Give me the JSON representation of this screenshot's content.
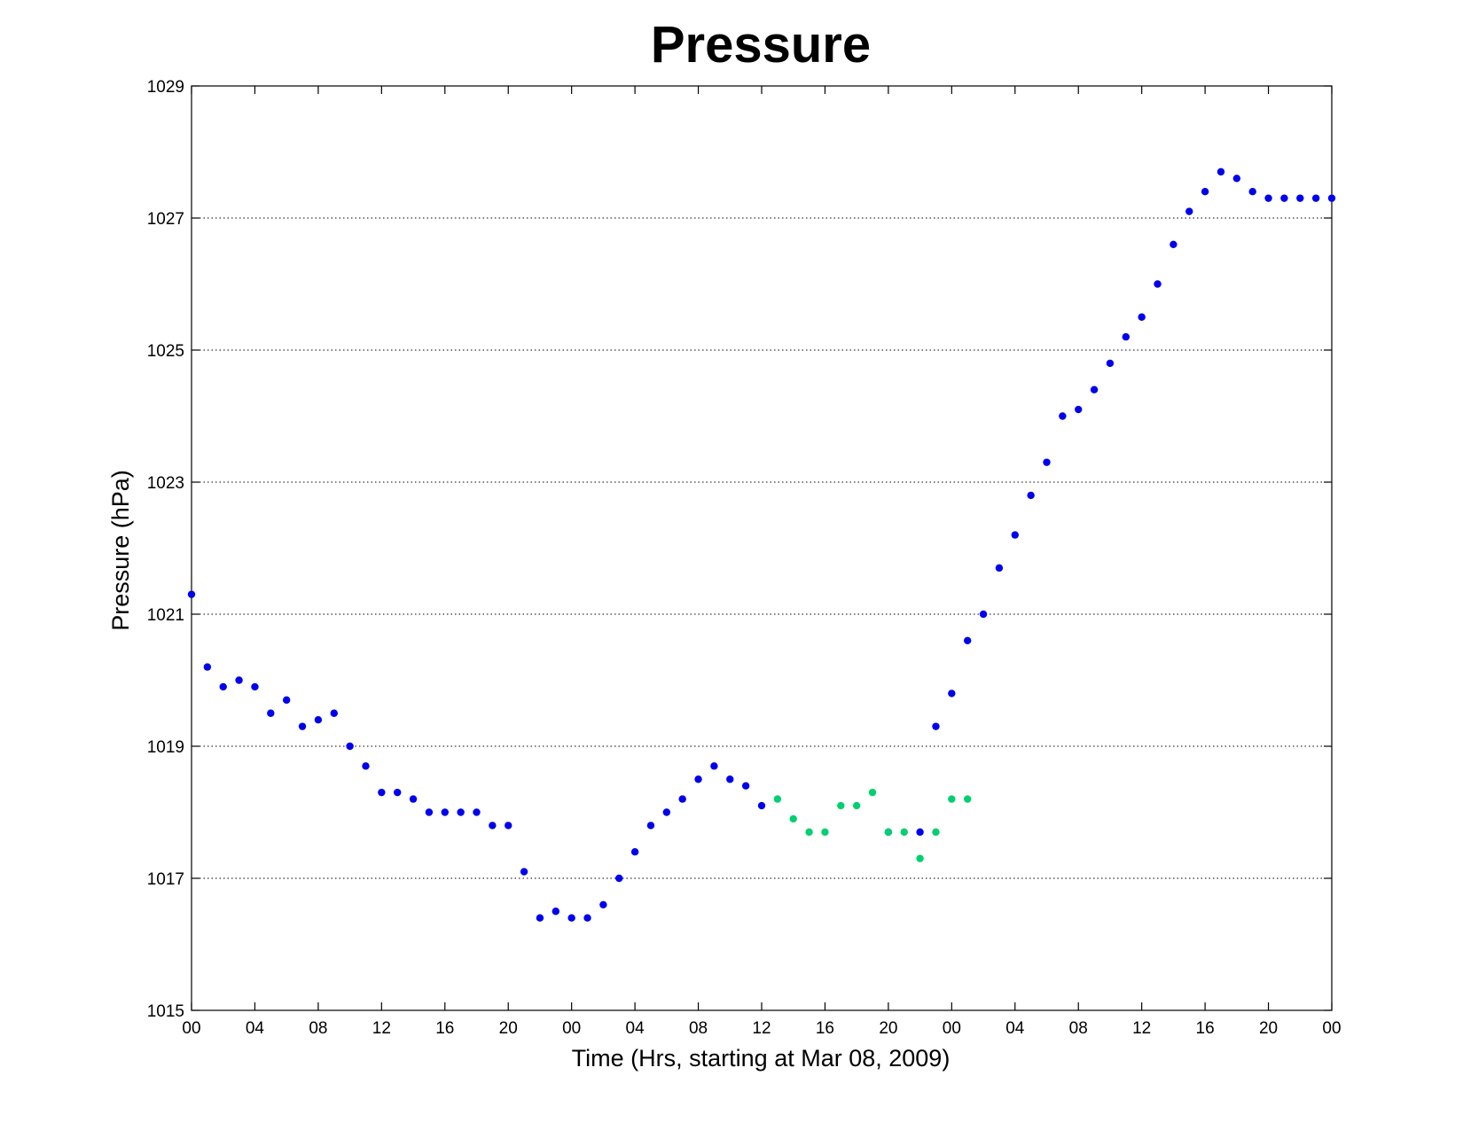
{
  "chart_data": {
    "type": "scatter",
    "title": "Pressure",
    "xlabel": "Time (Hrs, starting at Mar 08, 2009)",
    "ylabel": "Pressure (hPa)",
    "x_unit": "hours",
    "xlim": [
      0,
      72
    ],
    "ylim": [
      1015,
      1029
    ],
    "x_ticks": [
      0,
      4,
      8,
      12,
      16,
      20,
      24,
      28,
      32,
      36,
      40,
      44,
      48,
      52,
      56,
      60,
      64,
      68,
      72
    ],
    "x_tick_labels": [
      "00",
      "04",
      "08",
      "12",
      "16",
      "20",
      "00",
      "04",
      "08",
      "12",
      "16",
      "20",
      "00",
      "04",
      "08",
      "12",
      "16",
      "20",
      "00"
    ],
    "y_ticks": [
      1015,
      1017,
      1019,
      1021,
      1023,
      1025,
      1027,
      1029
    ],
    "y_tick_labels": [
      "1015",
      "1017",
      "1019",
      "1021",
      "1023",
      "1025",
      "1027",
      "1029"
    ],
    "grid": "horizontal-dotted",
    "series": [
      {
        "color": "#0000ee",
        "x": [
          0,
          1,
          2,
          3,
          4,
          5,
          6,
          7,
          8,
          9,
          10,
          11,
          12,
          13,
          14,
          15,
          16,
          17,
          18,
          19,
          20,
          21,
          22,
          23,
          24,
          25,
          26,
          27,
          28,
          29,
          30,
          31,
          32,
          33,
          34,
          35,
          36,
          44,
          46,
          47,
          48,
          49,
          50,
          51,
          52,
          53,
          54,
          55,
          56,
          57,
          58,
          59,
          60,
          61,
          62,
          63,
          64,
          65,
          66,
          67,
          68,
          69,
          70,
          71,
          72
        ],
        "y": [
          1021.3,
          1020.2,
          1019.9,
          1020.0,
          1019.9,
          1019.5,
          1019.7,
          1019.3,
          1019.4,
          1019.5,
          1019.0,
          1018.7,
          1018.3,
          1018.3,
          1018.2,
          1018.0,
          1018.0,
          1018.0,
          1018.0,
          1017.8,
          1017.8,
          1017.1,
          1016.4,
          1016.5,
          1016.4,
          1016.4,
          1016.6,
          1017.0,
          1017.4,
          1017.8,
          1018.0,
          1018.2,
          1018.5,
          1018.7,
          1018.5,
          1018.4,
          1018.1,
          1017.7,
          1017.7,
          1019.3,
          1019.8,
          1020.6,
          1021.0,
          1021.7,
          1022.2,
          1022.8,
          1023.3,
          1024.0,
          1024.1,
          1024.4,
          1024.8,
          1025.2,
          1025.5,
          1026.0,
          1026.6,
          1027.1,
          1027.4,
          1027.7,
          1027.6,
          1027.4,
          1027.3,
          1027.3,
          1027.3,
          1027.3,
          1027.3
        ]
      },
      {
        "color": "#00d070",
        "x": [
          37,
          38,
          39,
          40,
          41,
          42,
          43,
          44,
          45,
          46,
          47,
          48,
          49
        ],
        "y": [
          1018.2,
          1017.9,
          1017.7,
          1017.7,
          1018.1,
          1018.1,
          1018.3,
          1017.7,
          1017.7,
          1017.3,
          1017.7,
          1018.2,
          1018.2
        ]
      }
    ]
  }
}
